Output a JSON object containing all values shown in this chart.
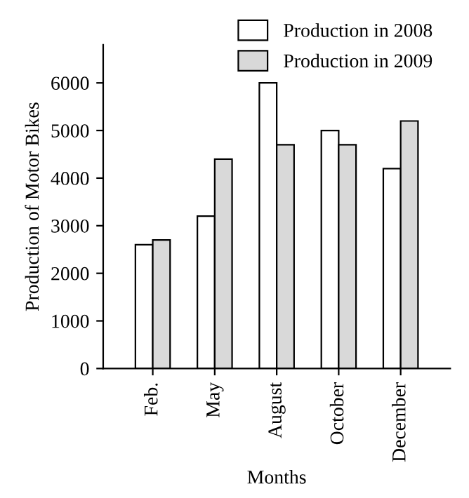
{
  "chart_data": {
    "type": "bar",
    "xlabel": "Months",
    "ylabel": "Production of Motor Bikes",
    "categories": [
      "Feb.",
      "May",
      "August",
      "October",
      "December"
    ],
    "series": [
      {
        "name": "Production in 2008",
        "color": "#ffffff",
        "values": [
          2600,
          3200,
          6000,
          5000,
          4200
        ]
      },
      {
        "name": "Production in 2009",
        "color": "#d9d9d9",
        "values": [
          2700,
          4400,
          4700,
          4700,
          5200
        ]
      }
    ],
    "ylim": [
      0,
      6800
    ],
    "yticks": [
      0,
      1000,
      2000,
      3000,
      4000,
      5000,
      6000
    ],
    "grid": false,
    "legend": "top right"
  }
}
